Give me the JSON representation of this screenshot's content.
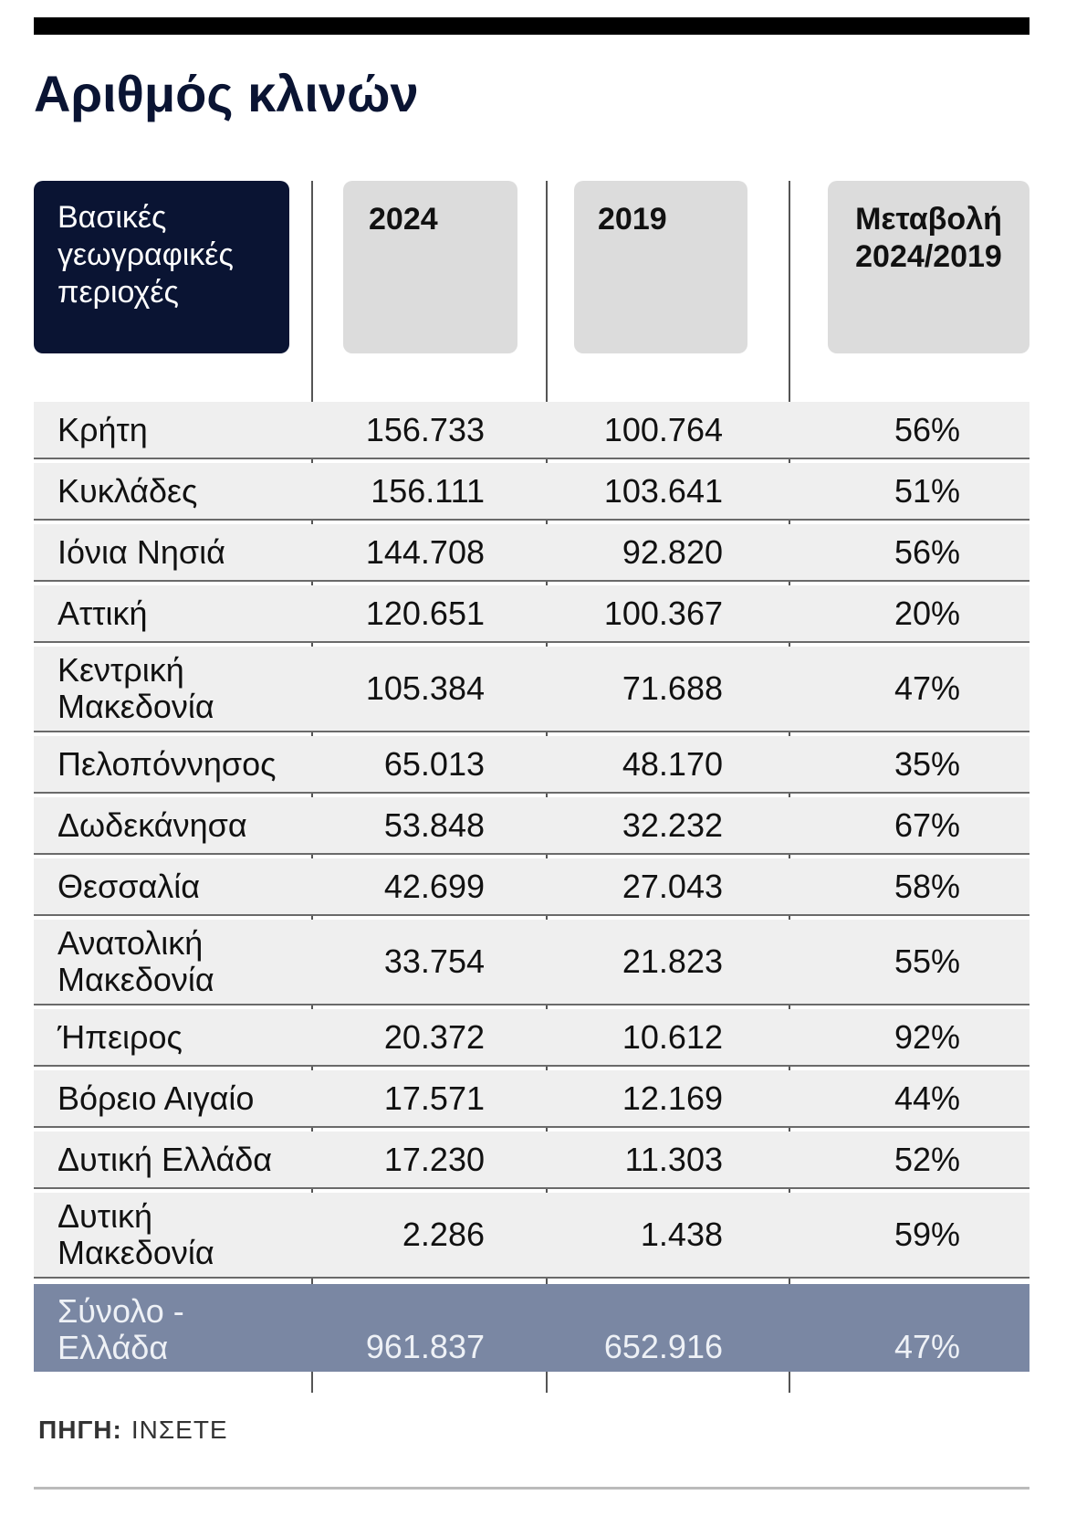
{
  "title": "Αριθμός κλινών",
  "header": [
    "Βασικές γεωγραφικές περιοχές",
    "2024",
    "2019",
    "Μεταβολή 2024/2019"
  ],
  "rows": [
    [
      "Κρήτη",
      "156.733",
      "100.764",
      "56%"
    ],
    [
      "Κυκλάδες",
      "156.111",
      "103.641",
      "51%"
    ],
    [
      "Ιόνια Νησιά",
      "144.708",
      "92.820",
      "56%"
    ],
    [
      "Αττική",
      "120.651",
      "100.367",
      "20%"
    ],
    [
      "Κεντρική Μακεδονία",
      "105.384",
      "71.688",
      "47%"
    ],
    [
      "Πελοπόννησος",
      "65.013",
      "48.170",
      "35%"
    ],
    [
      "Δωδεκάνησα",
      "53.848",
      "32.232",
      "67%"
    ],
    [
      "Θεσσαλία",
      "42.699",
      "27.043",
      "58%"
    ],
    [
      "Ανατολική Μακεδονία",
      "33.754",
      "21.823",
      "55%"
    ],
    [
      "Ήπειρος",
      "20.372",
      "10.612",
      "92%"
    ],
    [
      "Βόρειο Αιγαίο",
      "17.571",
      "12.169",
      "44%"
    ],
    [
      "Δυτική Ελλάδα",
      "17.230",
      "11.303",
      "52%"
    ],
    [
      "Δυτική Μακεδονία",
      "2.286",
      "1.438",
      "59%"
    ]
  ],
  "total": [
    "Σύνολο - Ελλάδα",
    "961.837",
    "652.916",
    "47%"
  ],
  "source": {
    "label": "ΠΗΓΗ:",
    "text": "ΙΝΣΕΤΕ"
  }
}
